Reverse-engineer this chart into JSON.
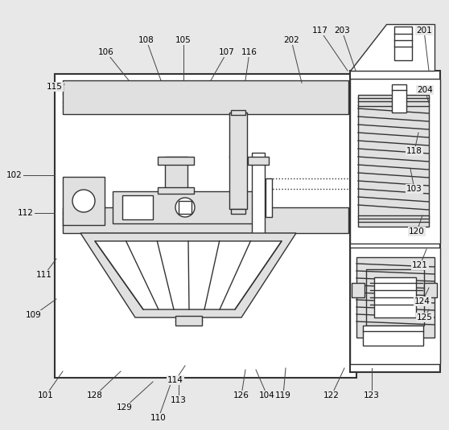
{
  "bg_color": "#e8e8e8",
  "line_color": "#555555",
  "dark_line": "#333333",
  "fill_light": "#e0e0e0",
  "fill_white": "#ffffff",
  "annotation_lw": 0.7,
  "annotation_color": "#444444",
  "leaders": [
    [
      "101",
      57,
      492,
      78,
      462
    ],
    [
      "102",
      18,
      218,
      68,
      218
    ],
    [
      "103",
      515,
      235,
      510,
      210
    ],
    [
      "104",
      332,
      492,
      318,
      460
    ],
    [
      "105",
      228,
      50,
      228,
      100
    ],
    [
      "106",
      132,
      65,
      160,
      100
    ],
    [
      "107",
      282,
      65,
      262,
      100
    ],
    [
      "108",
      182,
      50,
      200,
      100
    ],
    [
      "109",
      42,
      392,
      70,
      372
    ],
    [
      "110",
      197,
      520,
      213,
      475
    ],
    [
      "111",
      55,
      342,
      70,
      322
    ],
    [
      "112",
      32,
      265,
      68,
      265
    ],
    [
      "113",
      222,
      498,
      222,
      475
    ],
    [
      "114",
      218,
      473,
      230,
      455
    ],
    [
      "115",
      68,
      108,
      80,
      105
    ],
    [
      "116",
      310,
      65,
      305,
      100
    ],
    [
      "117",
      398,
      38,
      432,
      88
    ],
    [
      "118",
      515,
      188,
      520,
      165
    ],
    [
      "119",
      352,
      492,
      355,
      458
    ],
    [
      "120",
      518,
      288,
      525,
      268
    ],
    [
      "121",
      522,
      330,
      530,
      310
    ],
    [
      "122",
      412,
      492,
      428,
      458
    ],
    [
      "123",
      462,
      492,
      462,
      458
    ],
    [
      "124",
      525,
      375,
      533,
      358
    ],
    [
      "125",
      528,
      395,
      533,
      385
    ],
    [
      "126",
      300,
      492,
      305,
      460
    ],
    [
      "128",
      118,
      492,
      150,
      462
    ],
    [
      "129",
      155,
      507,
      190,
      475
    ],
    [
      "201",
      527,
      38,
      533,
      88
    ],
    [
      "202",
      362,
      50,
      375,
      103
    ],
    [
      "203",
      425,
      38,
      442,
      88
    ],
    [
      "204",
      528,
      112,
      533,
      128
    ]
  ]
}
